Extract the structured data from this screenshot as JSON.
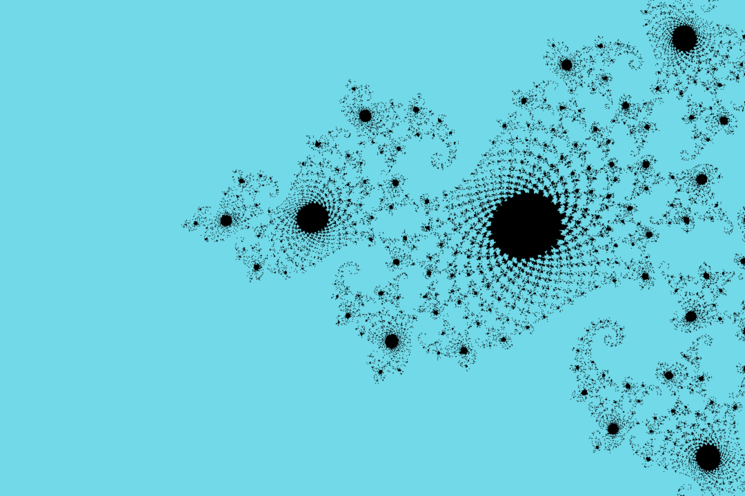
{
  "fractal": {
    "subject": "julia-set",
    "exterior_color": "#72D9E8",
    "interior_color": "#000000",
    "parameter": {
      "re": -0.7423,
      "im": 0.1293
    },
    "view": {
      "re_min": -2.02,
      "re_max": 0.14,
      "im_min": -0.72,
      "im_max": 0.72
    },
    "max_iterations": 260
  }
}
